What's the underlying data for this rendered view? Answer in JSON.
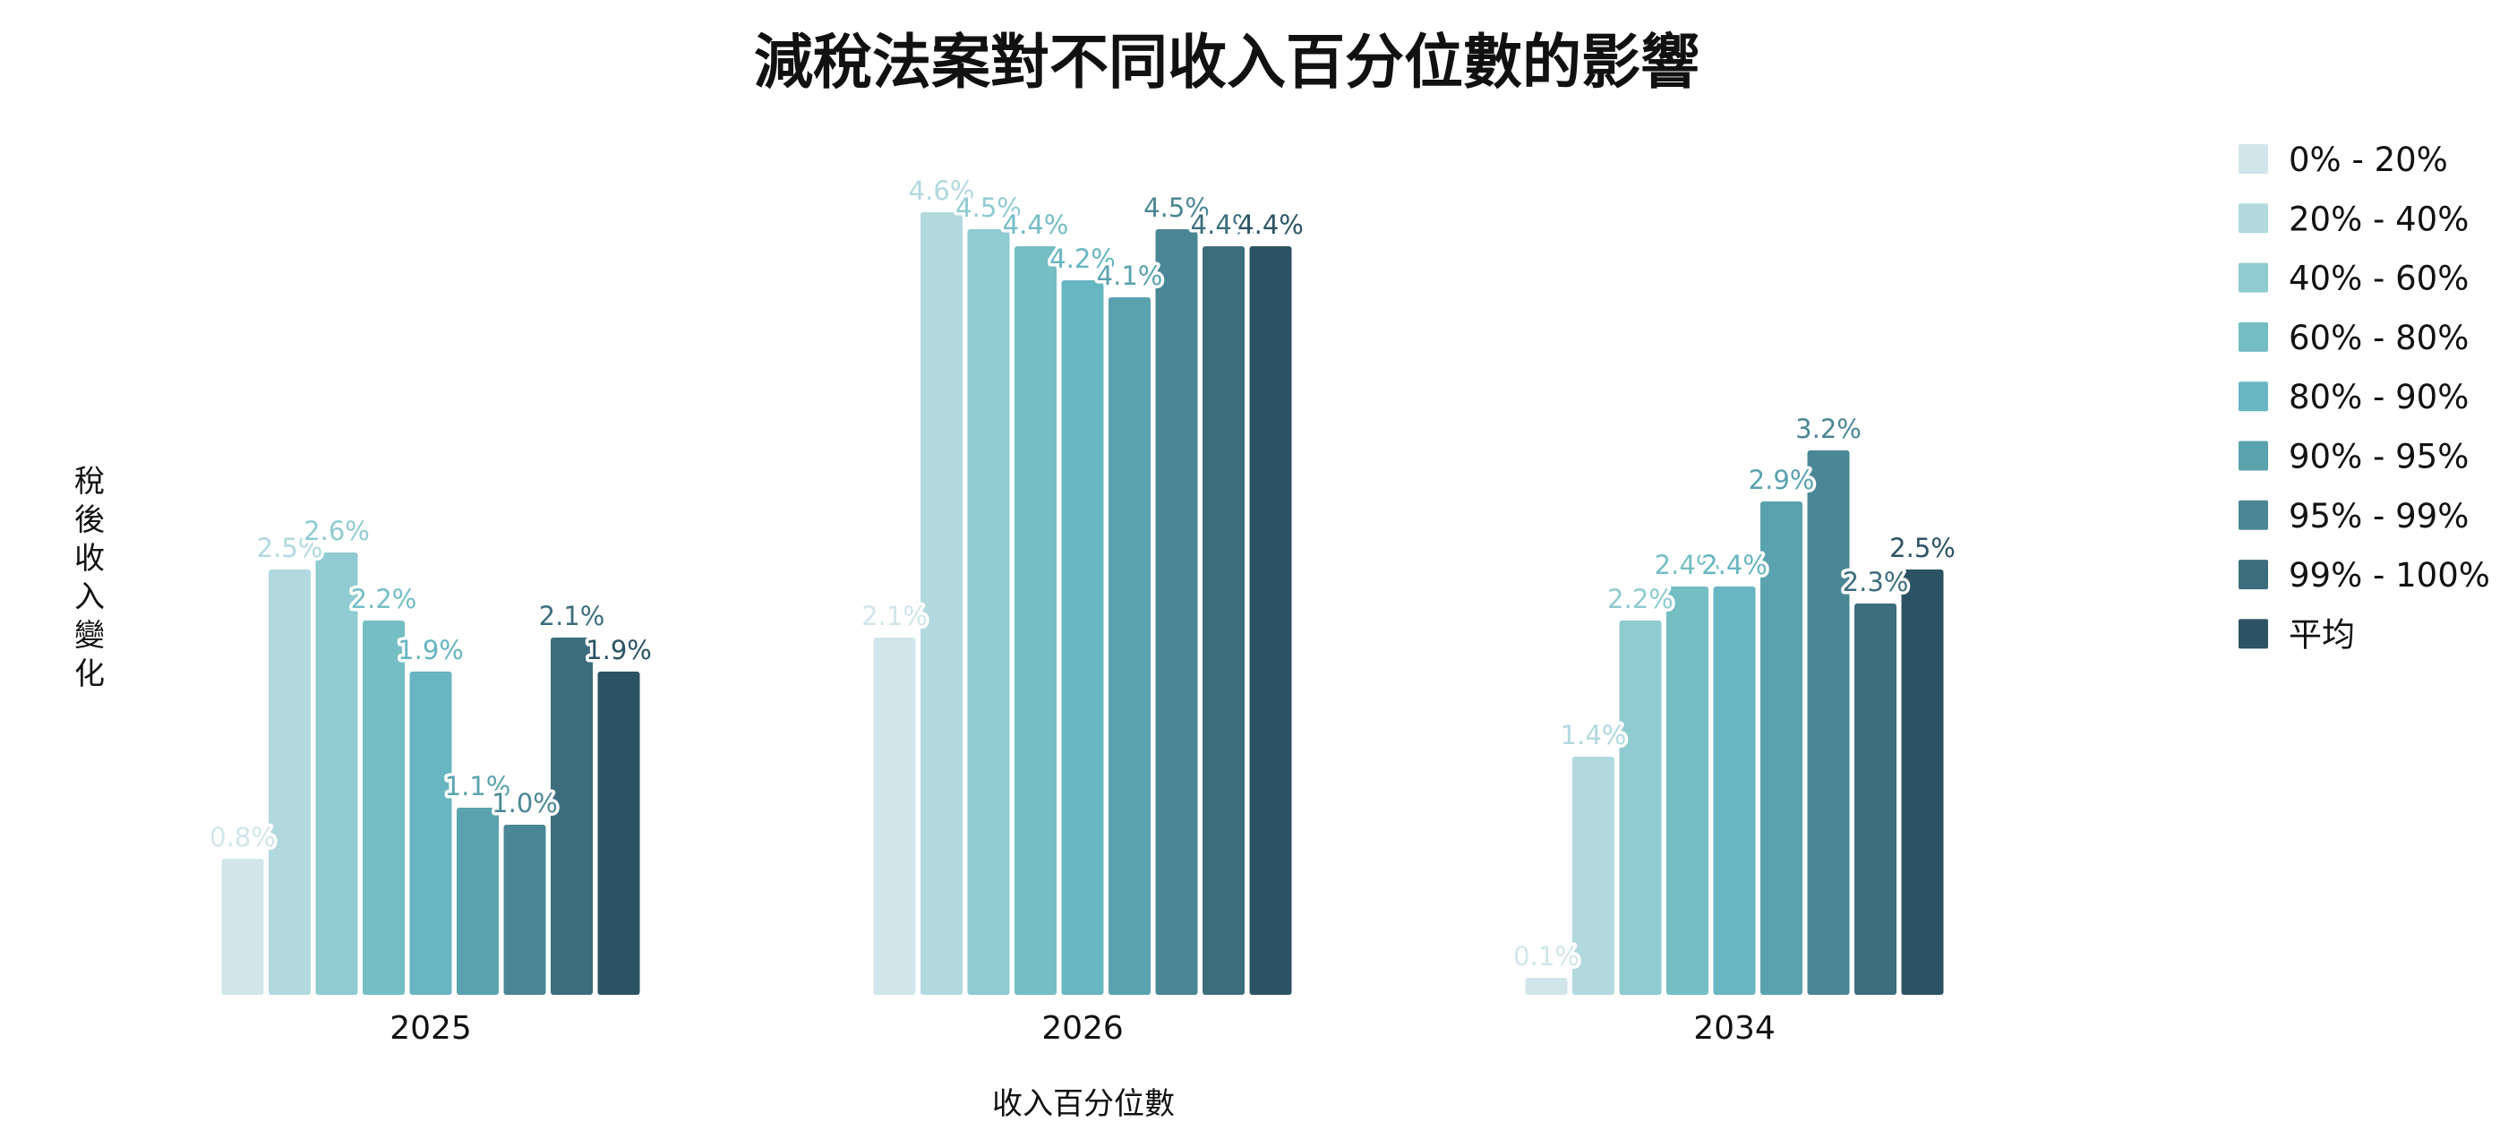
{
  "chart_data": {
    "type": "bar",
    "title": "減稅法案對不同收入百分位數的影響",
    "xlabel": "收入百分位數",
    "ylabel": "稅後收入變化",
    "categories": [
      "2025",
      "2026",
      "2034"
    ],
    "ylim": [
      0,
      4.6
    ],
    "grid": false,
    "legend_position": "right",
    "value_suffix": "%",
    "series": [
      {
        "name": "0% - 20%",
        "color": "#d1e6ea",
        "values": [
          0.8,
          2.1,
          0.1
        ]
      },
      {
        "name": "20% - 40%",
        "color": "#b1d9de",
        "values": [
          2.5,
          4.6,
          1.4
        ]
      },
      {
        "name": "40% - 60%",
        "color": "#8fcbd0",
        "values": [
          2.6,
          4.5,
          2.2
        ]
      },
      {
        "name": "60% - 80%",
        "color": "#74bec4",
        "values": [
          2.2,
          4.4,
          2.4
        ]
      },
      {
        "name": "80% - 90%",
        "color": "#67b6c1",
        "values": [
          1.9,
          4.2,
          2.4
        ]
      },
      {
        "name": "90% - 95%",
        "color": "#5aa2ae",
        "values": [
          1.1,
          4.1,
          2.9
        ]
      },
      {
        "name": "95% - 99%",
        "color": "#4a8794",
        "values": [
          1.0,
          4.5,
          3.2
        ]
      },
      {
        "name": "99% - 100%",
        "color": "#3c6d7d",
        "values": [
          2.1,
          4.4,
          2.3
        ]
      },
      {
        "name": "平均",
        "color": "#2c5363",
        "values": [
          1.9,
          4.4,
          2.5
        ]
      }
    ]
  }
}
